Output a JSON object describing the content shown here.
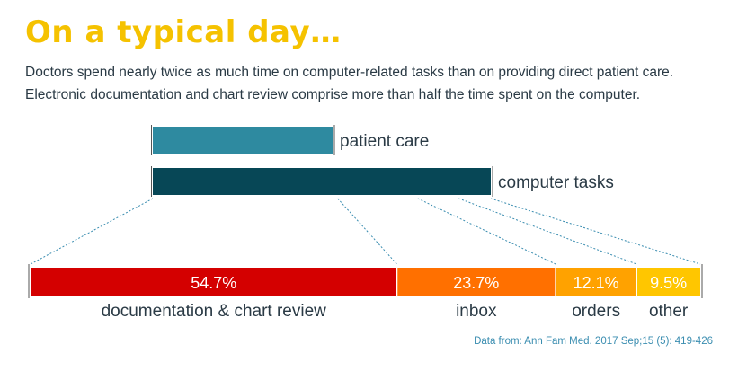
{
  "title": "On a typical day…",
  "subtitle_line1": "Doctors spend nearly twice as much time on computer-related tasks than on providing direct patient care.",
  "subtitle_line2": "Electronic documentation and chart review comprise more than half the time spent on the computer.",
  "source": "Data from: Ann Fam Med. 2017 Sep;15 (5): 419-426",
  "chart_data": [
    {
      "type": "bar",
      "orientation": "horizontal",
      "categories": [
        "patient care",
        "computer tasks"
      ],
      "values": [
        1,
        1.88
      ],
      "colors": [
        "#2e8aa0",
        "#074756"
      ]
    },
    {
      "type": "bar",
      "orientation": "horizontal-stacked",
      "total": 100,
      "segments": [
        {
          "label": "documentation & chart review",
          "value": 54.7,
          "text": "54.7%",
          "color": "#d40000"
        },
        {
          "label": "inbox",
          "value": 23.7,
          "text": "23.7%",
          "color": "#ff7000"
        },
        {
          "label": "orders",
          "value": 12.1,
          "text": "12.1%",
          "color": "#ffa200"
        },
        {
          "label": "other",
          "value": 9.5,
          "text": "9.5%",
          "color": "#ffc600"
        }
      ]
    }
  ]
}
